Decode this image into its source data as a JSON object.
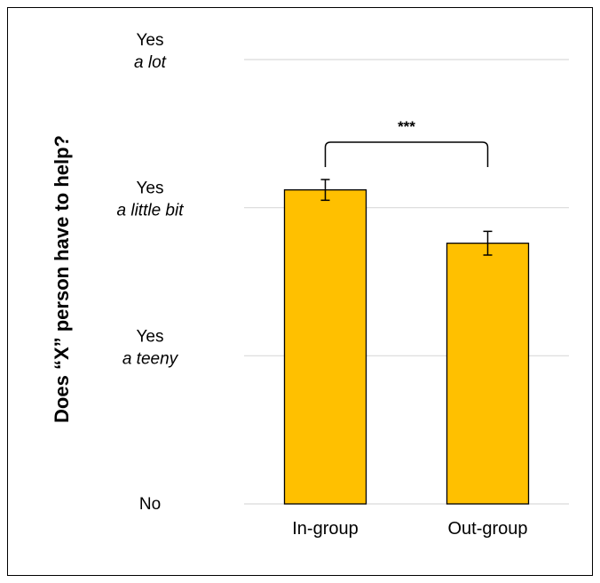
{
  "chart_data": {
    "type": "bar",
    "title": "",
    "xlabel": "",
    "ylabel": "Does “X” person have to help?",
    "categories": [
      "In-group",
      "Out-group"
    ],
    "values": [
      2.12,
      1.76
    ],
    "error": [
      0.07,
      0.08
    ],
    "ylim": [
      0,
      3
    ],
    "yticks": [
      {
        "value": 0,
        "main": "No",
        "sub": ""
      },
      {
        "value": 1,
        "main": "Yes",
        "sub": "a teeny"
      },
      {
        "value": 2,
        "main": "Yes",
        "sub": "a little bit"
      },
      {
        "value": 3,
        "main": "Yes",
        "sub": "a lot"
      }
    ],
    "grid": true,
    "bar_color": "#FFC000",
    "bar_edge_color": "#000000",
    "significance": {
      "between": [
        0,
        1
      ],
      "label": "***"
    }
  }
}
